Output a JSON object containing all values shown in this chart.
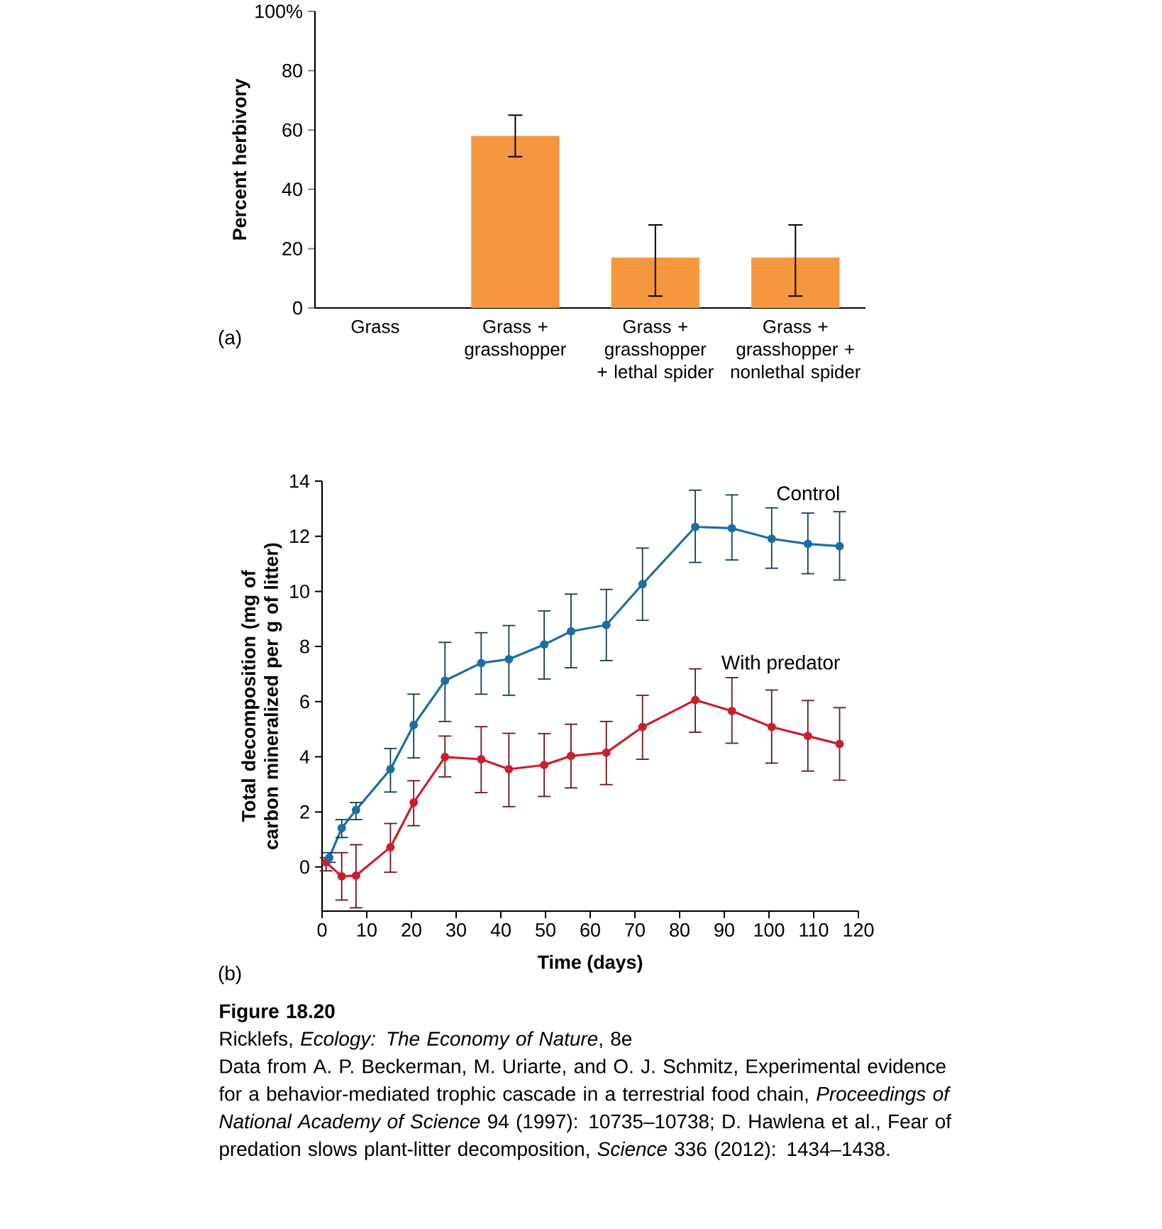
{
  "chart_data": [
    {
      "type": "bar",
      "ylabel": "Percent herbivory",
      "categories": [
        "Grass",
        "Grass + grasshopper",
        "Grass + grasshopper + lethal spider",
        "Grass + grasshopper + nonlethal spider"
      ],
      "values": [
        0,
        58,
        17,
        17
      ],
      "errors": [
        null,
        [
          51,
          65
        ],
        [
          4,
          28
        ],
        [
          4,
          28
        ]
      ],
      "color": "#f5973f",
      "ylim": [
        0,
        100
      ],
      "yticks": [
        0,
        20,
        40,
        60,
        80,
        {
          "value": 100,
          "label": "100%"
        }
      ],
      "annotations": [
        "(a)"
      ]
    },
    {
      "type": "line",
      "xlabel": "Time (days)",
      "ylabel": "Total decomposition (mg of carbon mineralized per g of litter)",
      "marker": "circle",
      "xlim": [
        0,
        120
      ],
      "xticks": [
        0,
        10,
        20,
        30,
        40,
        50,
        60,
        70,
        80,
        90,
        100,
        110,
        120
      ],
      "ylim": [
        -1.6,
        14
      ],
      "yticks": [
        0,
        2,
        4,
        6,
        8,
        10,
        12,
        14
      ],
      "x": [
        1.6,
        4.4,
        7.6,
        15.3,
        20.5,
        27.5,
        35.6,
        41.8,
        49.7,
        55.7,
        63.6,
        71.7,
        83.5,
        91.7,
        100.6,
        108.7,
        115.8
      ],
      "series": [
        {
          "name": "Control",
          "color": "#1c6ea4",
          "values": [
            0.34,
            1.41,
            2.07,
            3.55,
            5.15,
            6.76,
            7.4,
            7.54,
            8.07,
            8.55,
            8.78,
            10.26,
            12.34,
            12.29,
            11.91,
            11.72,
            11.64
          ],
          "errors": [
            [
              0.17,
              0.52
            ],
            [
              1.07,
              1.72
            ],
            [
              1.72,
              2.34
            ],
            [
              2.72,
              4.3
            ],
            [
              3.96,
              6.27
            ],
            [
              5.28,
              8.15
            ],
            [
              6.27,
              8.5
            ],
            [
              6.23,
              8.76
            ],
            [
              6.82,
              9.29
            ],
            [
              7.23,
              9.9
            ],
            [
              7.49,
              10.07
            ],
            [
              8.95,
              11.57
            ],
            [
              11.05,
              13.67
            ],
            [
              11.14,
              13.5
            ],
            [
              10.84,
              13.03
            ],
            [
              10.64,
              12.84
            ],
            [
              10.41,
              12.89
            ]
          ]
        },
        {
          "name": "With predator",
          "color": "#c8202f",
          "x": [
            0.9,
            4.4,
            7.6,
            15.3,
            20.5,
            27.5,
            35.6,
            41.8,
            49.7,
            55.7,
            63.6,
            71.7,
            83.5,
            91.7,
            100.6,
            108.7,
            115.8
          ],
          "values": [
            0.17,
            -0.34,
            -0.31,
            0.72,
            2.34,
            3.99,
            3.91,
            3.55,
            3.7,
            4.03,
            4.15,
            5.08,
            6.06,
            5.66,
            5.08,
            4.75,
            4.46
          ],
          "errors": [
            [
              -0.14,
              0.34
            ],
            [
              -1.2,
              0.52
            ],
            [
              -1.48,
              0.81
            ],
            [
              -0.19,
              1.58
            ],
            [
              1.5,
              3.13
            ],
            [
              3.27,
              4.75
            ],
            [
              2.7,
              5.09
            ],
            [
              2.19,
              4.85
            ],
            [
              2.56,
              4.84
            ],
            [
              2.87,
              5.18
            ],
            [
              2.99,
              5.28
            ],
            [
              3.91,
              6.23
            ],
            [
              4.89,
              7.19
            ],
            [
              4.49,
              6.87
            ],
            [
              3.77,
              6.42
            ],
            [
              3.48,
              6.04
            ],
            [
              3.15,
              5.78
            ]
          ]
        }
      ],
      "annotations": [
        "(b)",
        "Figure 18.20",
        "Ricklefs, *Ecology: The Economy of Nature*, 8e",
        "Data from A. P. Beckerman, M. Uriarte, and O. J. Schmitz, Experimental evidence for a behavior-mediated trophic cascade in a terrestrial food chain, *Proceedings of National Academy of Science* 94 (1997): 10735–10738; D. Hawlena et al., Fear of predation slows plant-litter decomposition, *Science* 336 (2012): 1434–1438."
      ]
    }
  ]
}
